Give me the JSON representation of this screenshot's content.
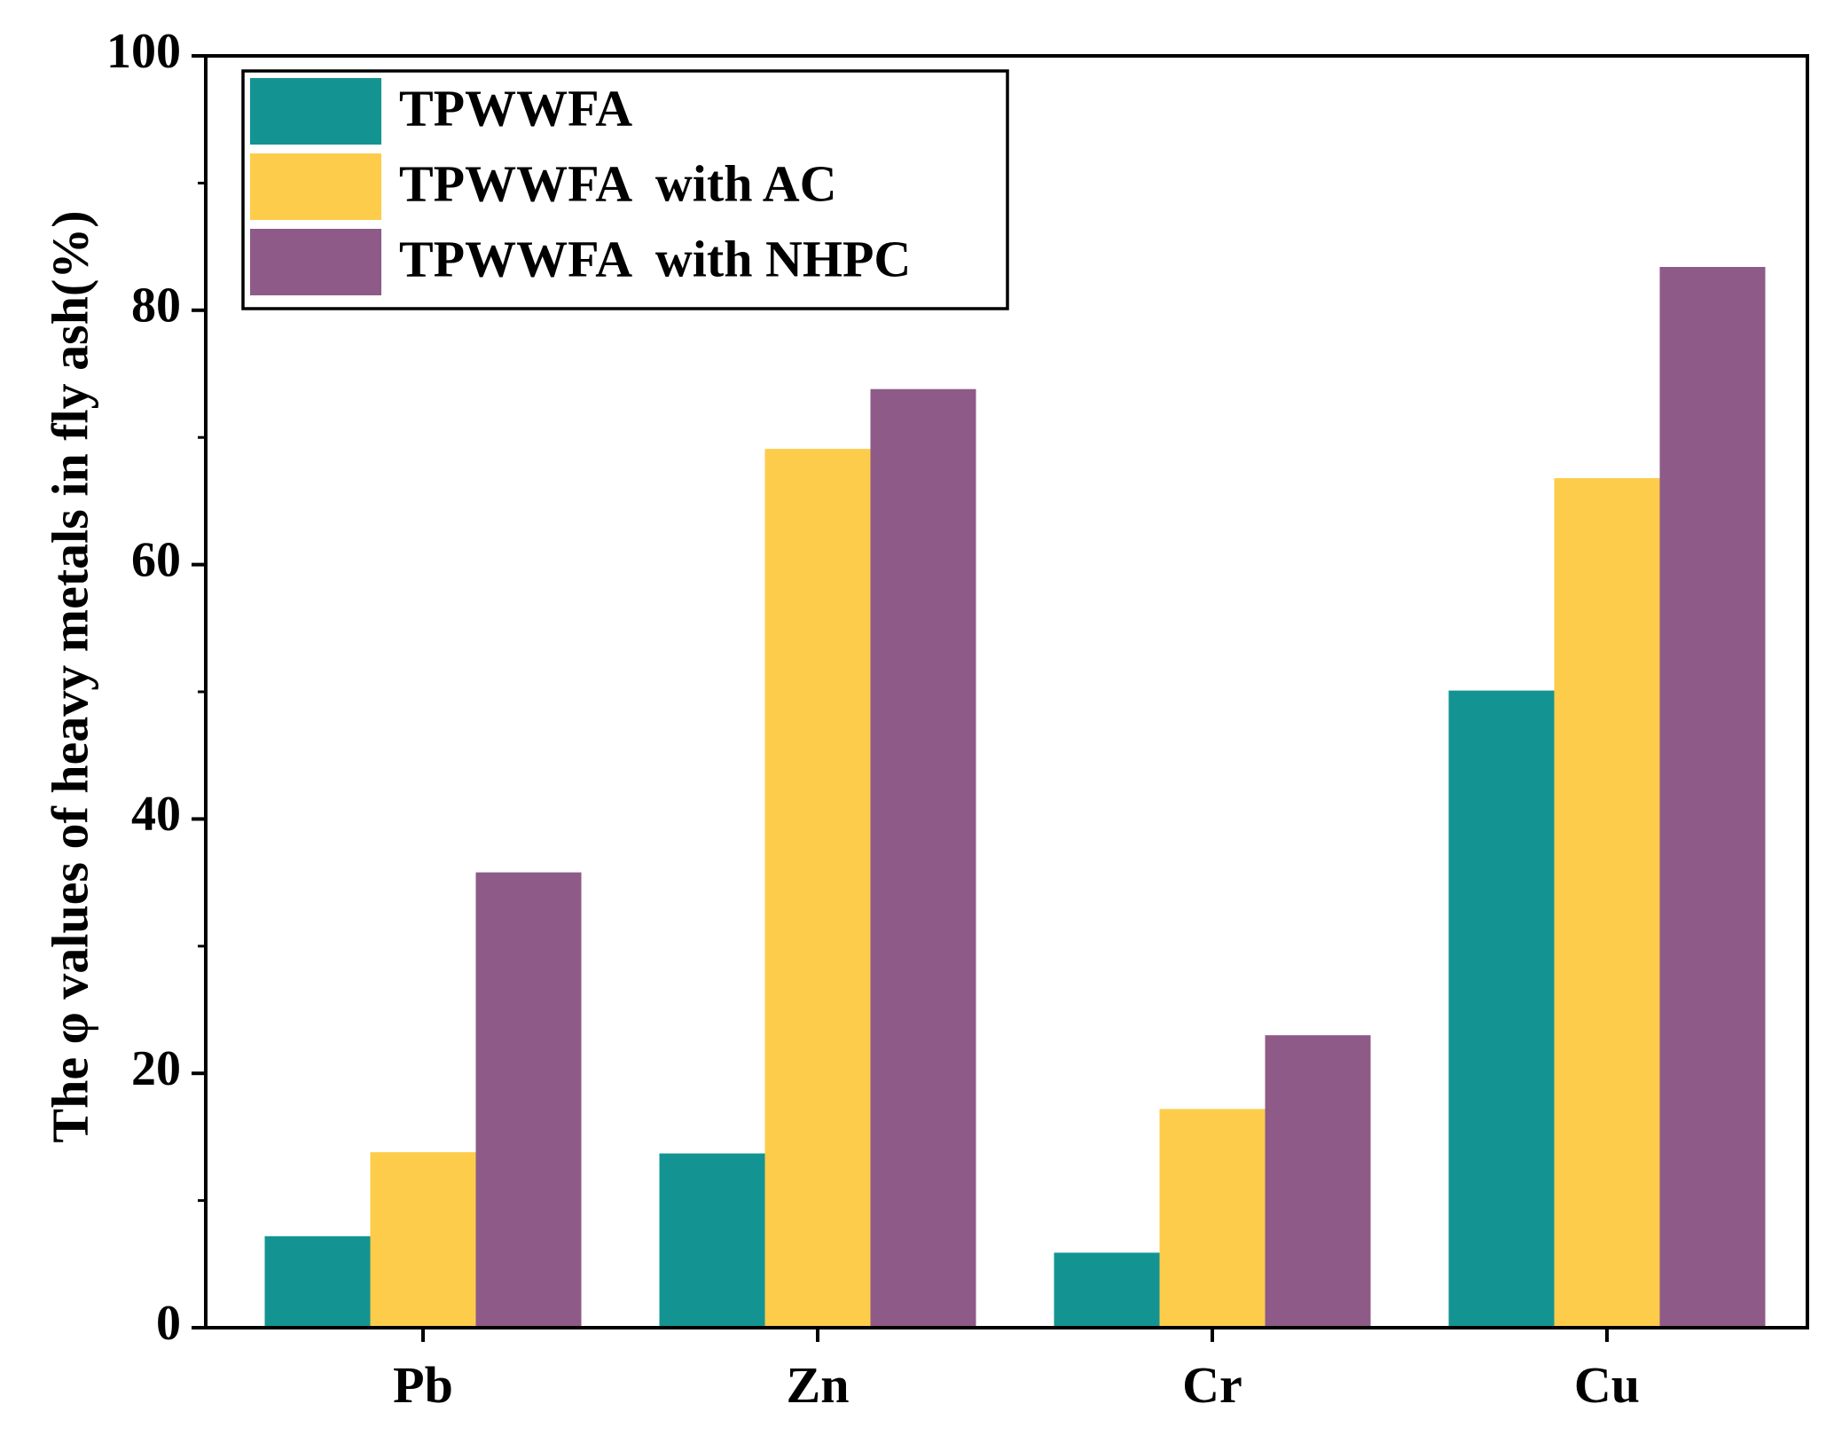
{
  "chart_data": {
    "type": "bar",
    "title": "",
    "xlabel": "",
    "ylabel": "The φ values of heavy metals in fly ash(%)",
    "ylim": [
      0,
      100
    ],
    "yticks": [
      0,
      20,
      40,
      60,
      80,
      100
    ],
    "categories": [
      "Pb",
      "Zn",
      "Cr",
      "Cu"
    ],
    "series": [
      {
        "name": "TPWWFA",
        "color": "#139492",
        "values": [
          7.2,
          13.7,
          5.9,
          50.1
        ]
      },
      {
        "name": "TPWWFA  with AC",
        "color": "#FDCC4B",
        "values": [
          13.8,
          69.1,
          17.2,
          66.8
        ]
      },
      {
        "name": "TPWWFA  with NHPC",
        "color": "#8E5A87",
        "values": [
          35.8,
          73.8,
          23.0,
          83.4
        ]
      }
    ],
    "legend_position": "top-left",
    "grid": false
  }
}
